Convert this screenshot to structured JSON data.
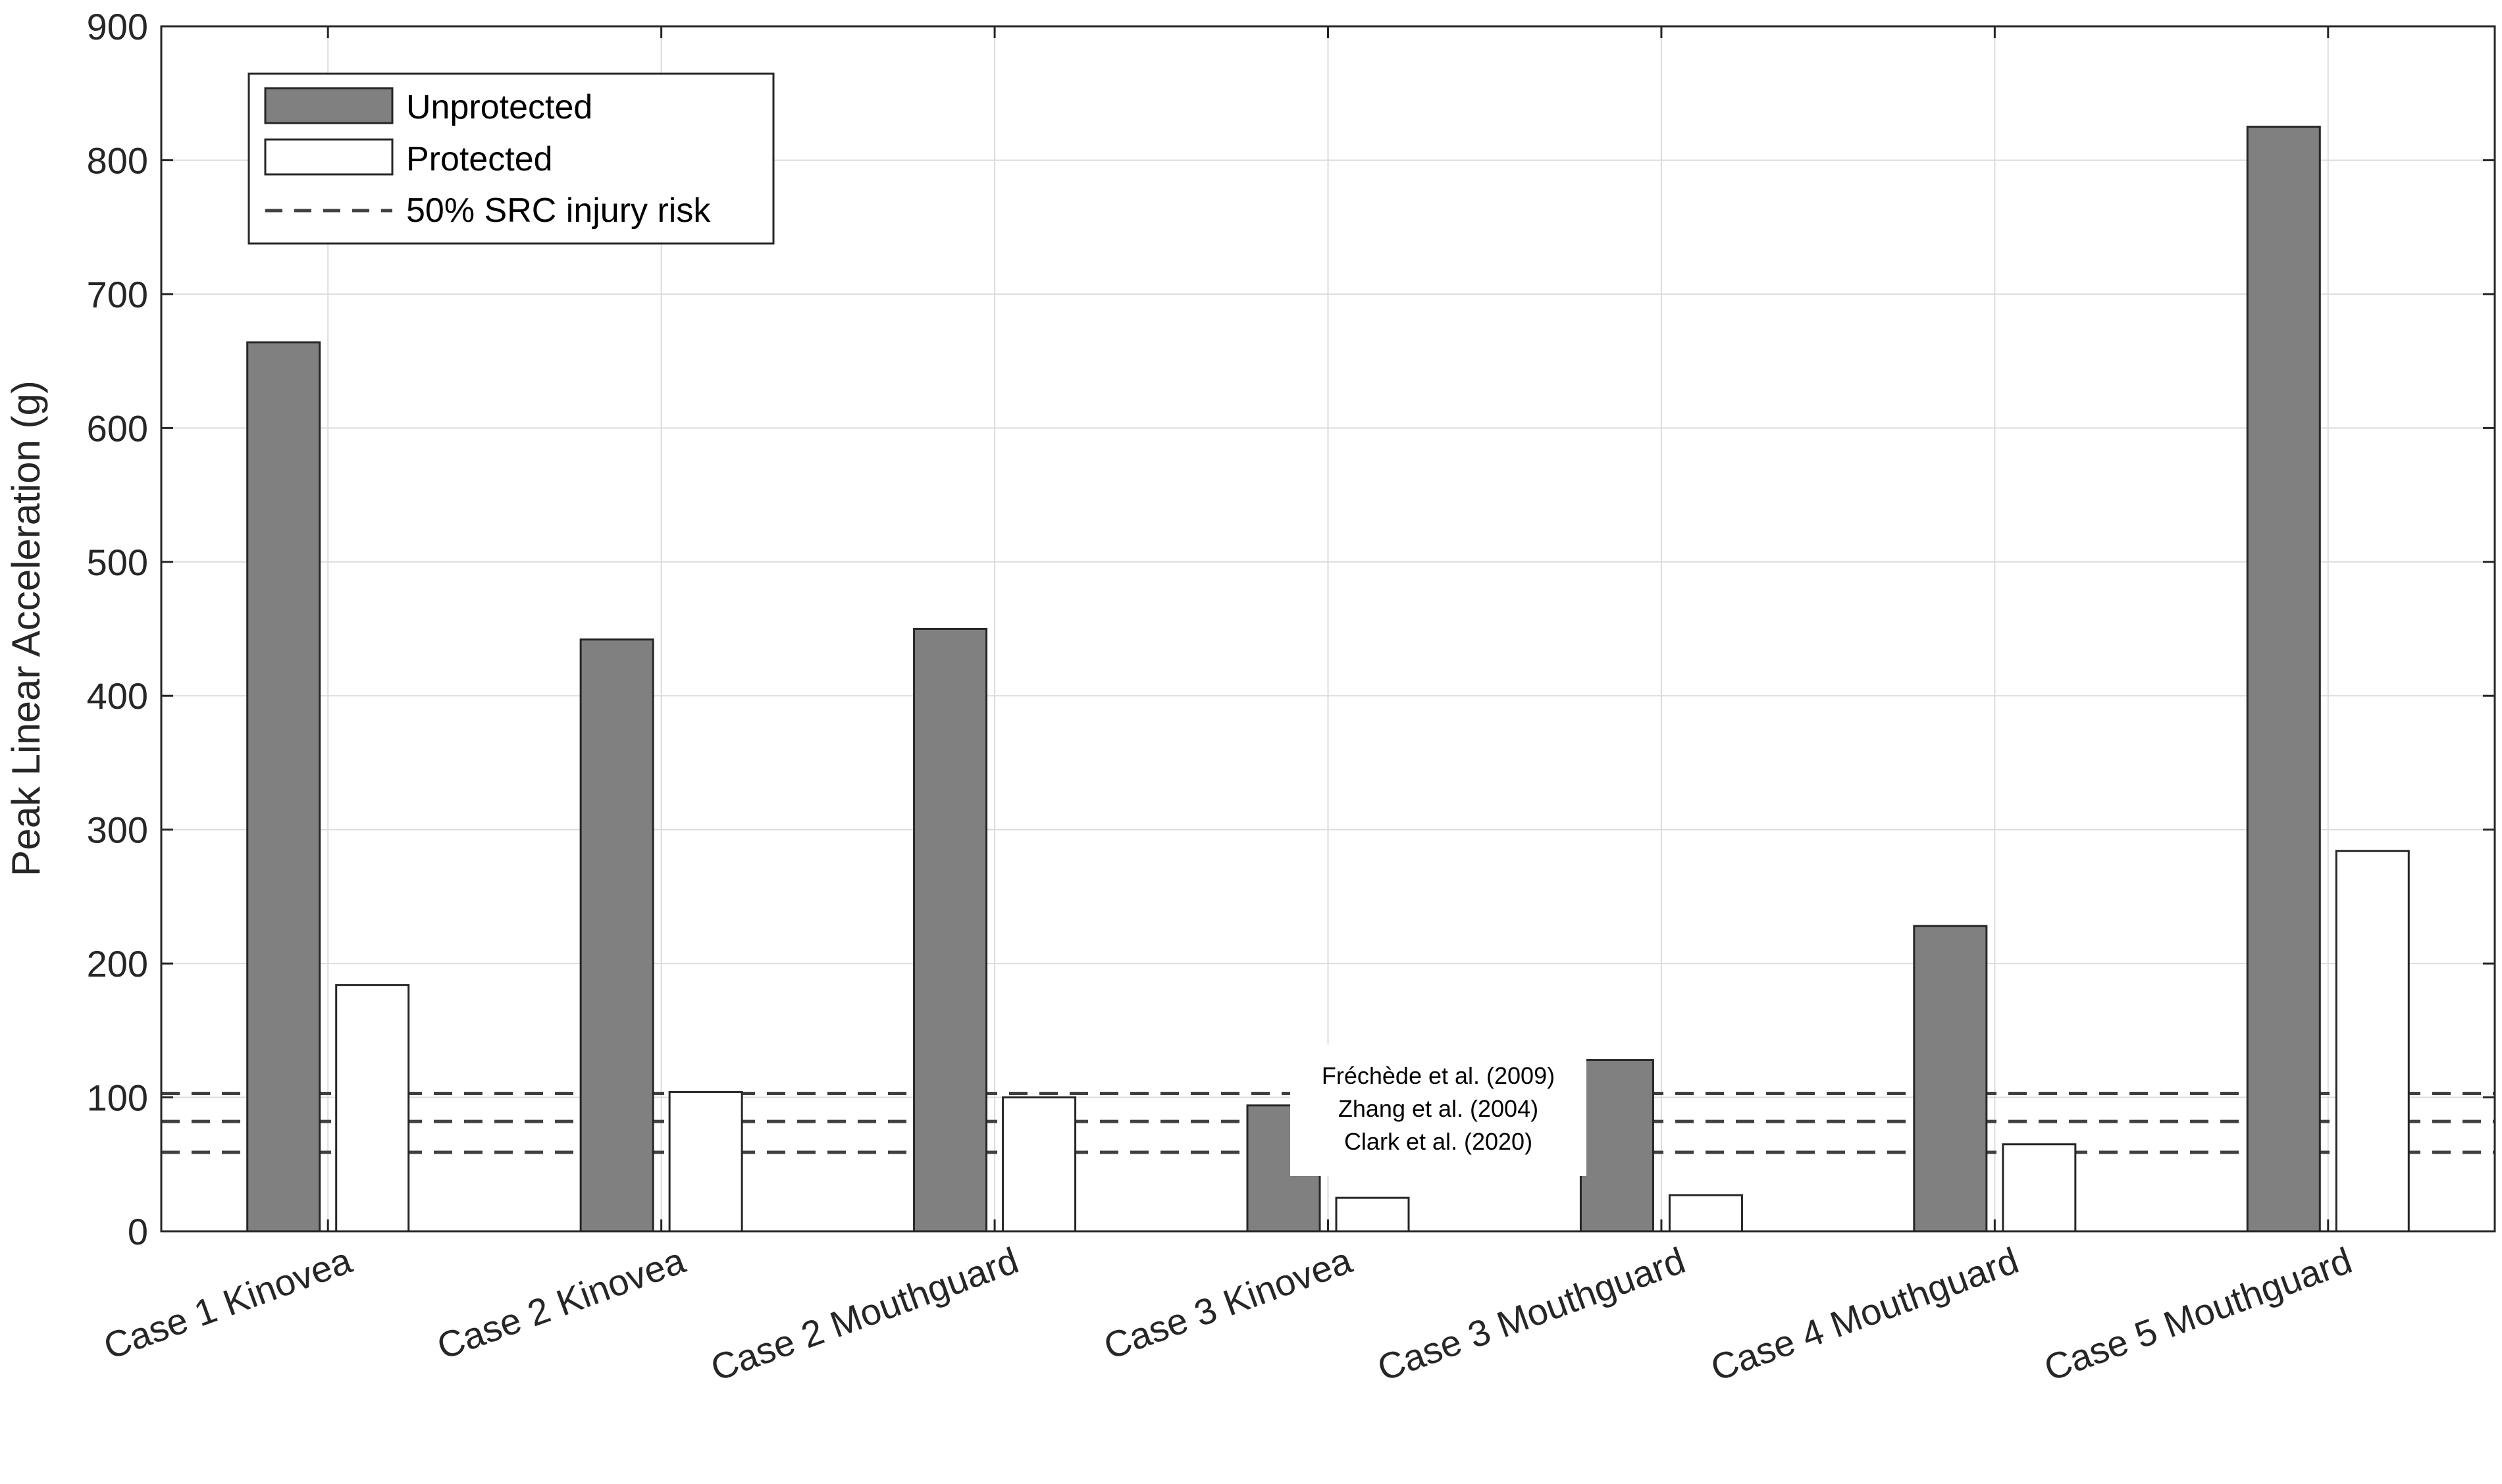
{
  "chart_data": {
    "type": "bar",
    "title": "",
    "xlabel": "",
    "ylabel": "Peak Linear Acceleration (g)",
    "ylim": [
      0,
      900
    ],
    "yticks": [
      "0",
      "100",
      "200",
      "300",
      "400",
      "500",
      "600",
      "700",
      "800",
      "900"
    ],
    "grid": true,
    "categories": [
      "Case 1 Kinovea",
      "Case 2 Kinovea",
      "Case 2 Mouthguard",
      "Case 3 Kinovea",
      "Case 3 Mouthguard",
      "Case 4 Mouthguard",
      "Case 5 Mouthguard"
    ],
    "series": [
      {
        "name": "Unprotected",
        "values": [
          664,
          442,
          450,
          94,
          128,
          228,
          825
        ],
        "color": "#808080"
      },
      {
        "name": "Protected",
        "values": [
          184,
          104,
          100,
          25,
          27,
          65,
          284
        ],
        "color": "#ffffff"
      }
    ],
    "reference_lines": [
      {
        "label": "Fréchède et al. (2009)",
        "value": 103
      },
      {
        "label": "Zhang et al. (2004)",
        "value": 82
      },
      {
        "label": "Clark et al. (2020)",
        "value": 59
      }
    ],
    "legend": {
      "position": "top-left",
      "entries": [
        "Unprotected",
        "Protected",
        "50% SRC injury risk"
      ]
    },
    "annotation": [
      "Fréchède et al. (2009)",
      "Zhang et al. (2004)",
      "Clark et al. (2020)"
    ]
  }
}
